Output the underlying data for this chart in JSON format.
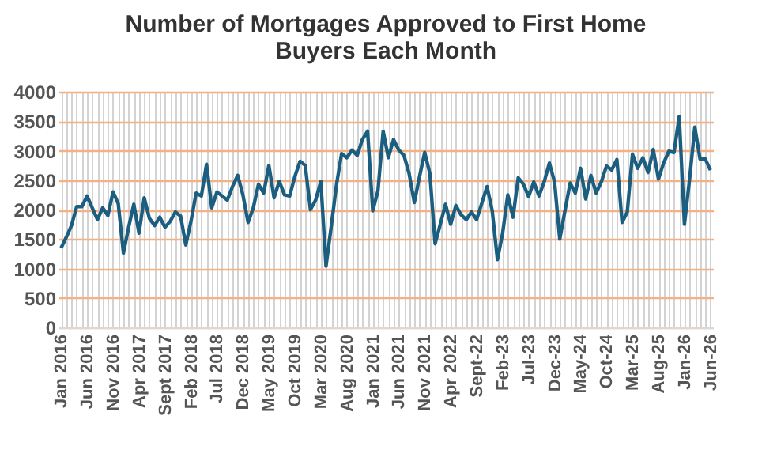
{
  "chart_data": {
    "type": "line",
    "title": "Number of Mortgages Approved to First Home Buyers Each Month",
    "categories": [
      "Jan 2016",
      null,
      null,
      null,
      null,
      "Jun 2016",
      null,
      null,
      null,
      null,
      "Nov 2016",
      null,
      null,
      null,
      null,
      "Apr 2017",
      null,
      null,
      null,
      null,
      "Sept 2017",
      null,
      null,
      null,
      null,
      "Feb 2018",
      null,
      null,
      null,
      null,
      "Jul 2018",
      null,
      null,
      null,
      null,
      "Dec 2018",
      null,
      null,
      null,
      null,
      "May 2019",
      null,
      null,
      null,
      null,
      "Oct 2019",
      null,
      null,
      null,
      null,
      "Mar 2020",
      null,
      null,
      null,
      null,
      "Aug 2020",
      null,
      null,
      null,
      null,
      "Jan 2021",
      null,
      null,
      null,
      null,
      "Jun 2021",
      null,
      null,
      null,
      null,
      "Nov 2021",
      null,
      null,
      null,
      null,
      "Apr 2022",
      null,
      null,
      null,
      null,
      "Sept-22",
      null,
      null,
      null,
      null,
      "Feb-23",
      null,
      null,
      null,
      null,
      "Jul-23",
      null,
      null,
      null,
      null,
      "Dec-23",
      null,
      null,
      null,
      null,
      "May-24",
      null,
      null,
      null,
      null,
      "Oct-24",
      null,
      null,
      null,
      null,
      "Mar-25",
      null,
      null,
      null,
      null,
      "Aug-25",
      null,
      null,
      null,
      null,
      "Jan-26",
      null,
      null,
      null,
      null,
      "Jun-26"
    ],
    "series": [
      {
        "color": "#1b5e80",
        "values": [
          1350,
          1530,
          1730,
          2050,
          2050,
          2230,
          2030,
          1830,
          2030,
          1900,
          2300,
          2100,
          1260,
          1700,
          2090,
          1600,
          2200,
          1850,
          1730,
          1870,
          1700,
          1800,
          1960,
          1890,
          1400,
          1800,
          2280,
          2230,
          2770,
          2030,
          2300,
          2230,
          2160,
          2390,
          2580,
          2250,
          1780,
          2030,
          2430,
          2280,
          2750,
          2200,
          2480,
          2250,
          2230,
          2560,
          2820,
          2750,
          2000,
          2160,
          2480,
          1040,
          1710,
          2410,
          2950,
          2880,
          3010,
          2920,
          3190,
          3330,
          1980,
          2320,
          3330,
          2880,
          3190,
          3010,
          2920,
          2610,
          2120,
          2560,
          2970,
          2610,
          1420,
          1750,
          2090,
          1750,
          2070,
          1910,
          1830,
          1960,
          1830,
          2110,
          2390,
          1980,
          1150,
          1600,
          2250,
          1870,
          2540,
          2430,
          2220,
          2470,
          2230,
          2470,
          2790,
          2470,
          1500,
          1980,
          2450,
          2280,
          2700,
          2180,
          2580,
          2280,
          2470,
          2740,
          2670,
          2850,
          1780,
          1960,
          2940,
          2700,
          2880,
          2630,
          3020,
          2520,
          2790,
          2990,
          2970,
          3580,
          1750,
          2520,
          3400,
          2860,
          2860,
          2670
        ]
      }
    ],
    "ylim": [
      0,
      4000
    ],
    "yticks": [
      0,
      500,
      1000,
      1500,
      2000,
      2500,
      3000,
      3500,
      4000
    ],
    "grid": true
  }
}
